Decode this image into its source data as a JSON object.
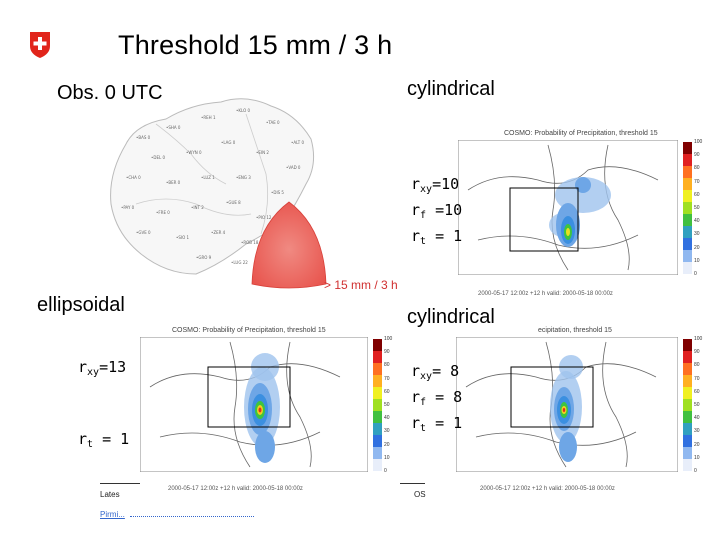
{
  "title": "Threshold 15 mm / 3 h",
  "labels": {
    "obs": "Obs. 0 UTC",
    "cyl_top": "cylindrical",
    "ellipsoidal": "ellipsoidal",
    "cyl_bottom": "cylindrical",
    "kernel_caption": "> 15 mm / 3 h"
  },
  "params_top": {
    "rxy": "=10",
    "rf": " =10",
    "rt": " = 1"
  },
  "params_ell": {
    "rxy": "=13",
    "rt": " = 1"
  },
  "params_bottom": {
    "rxy": "= 8",
    "rf": " = 8",
    "rt": " = 1"
  },
  "panels": {
    "top": {
      "title": "COSMO: Probability of Precipitation, threshold 15",
      "foot": "2000-05-17 12:00z +12 h   valid: 2000-05-18 00:00z"
    },
    "left": {
      "title": "COSMO: Probability of Precipitation, threshold 15",
      "foot": "2000-05-17 12:00z +12 h   valid: 2000-05-18 00:00z"
    },
    "right": {
      "title": "ecipitation, threshold 15",
      "foot": "2000-05-17 12:00z +12 h   valid: 2000-05-18 00:00z"
    }
  },
  "colorbar_ticks": [
    "100",
    "90",
    "80",
    "70",
    "60",
    "50",
    "40",
    "30",
    "20",
    "10",
    "0"
  ],
  "footer": {
    "left": "Lates",
    "right": "OS",
    "link": "Pirmi..."
  },
  "colors": {
    "swiss_red": "#e1251b",
    "kernel": "#e8554e",
    "link": "#3366cc"
  }
}
